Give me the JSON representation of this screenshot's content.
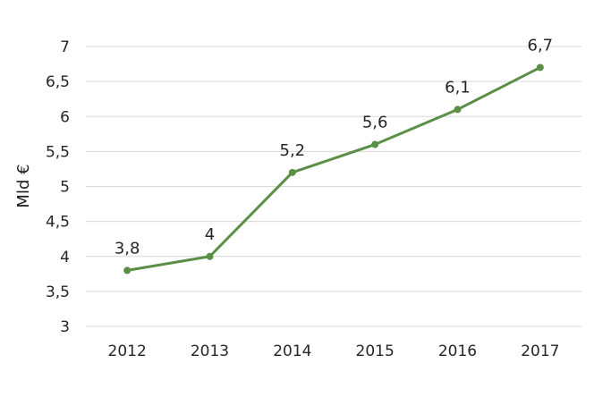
{
  "chart_data": {
    "type": "line",
    "categories": [
      "2012",
      "2013",
      "2014",
      "2015",
      "2016",
      "2017"
    ],
    "values": [
      3.8,
      4,
      5.2,
      5.6,
      6.1,
      6.7
    ],
    "data_labels": [
      "3,8",
      "4",
      "5,2",
      "5,6",
      "6,1",
      "6,7"
    ],
    "ylabel": "Mld €",
    "xlabel": "",
    "ylim": [
      3,
      7
    ],
    "y_ticks": [
      3,
      3.5,
      4,
      4.5,
      5,
      5.5,
      6,
      6.5,
      7
    ],
    "y_tick_labels": [
      "3",
      "3,5",
      "4",
      "4,5",
      "5",
      "5,5",
      "6",
      "6,5",
      "7"
    ],
    "grid": "horizontal",
    "legend": "none",
    "line_color": "#5a8f46"
  }
}
